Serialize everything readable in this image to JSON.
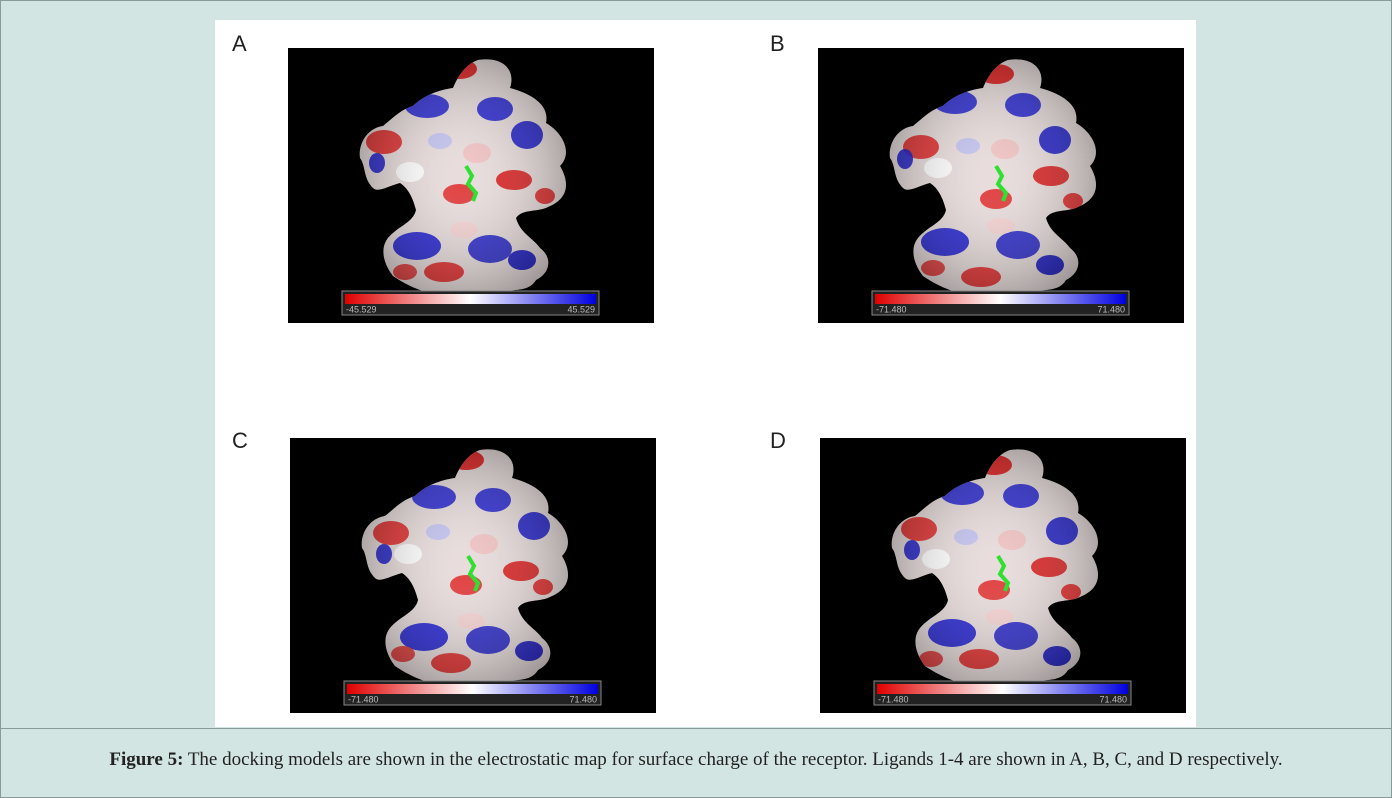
{
  "figure": {
    "panels": [
      {
        "label": "A",
        "scale_min": "-45.529",
        "scale_max": "45.529"
      },
      {
        "label": "B",
        "scale_min": "-71.480",
        "scale_max": "71.480"
      },
      {
        "label": "C",
        "scale_min": "-71.480",
        "scale_max": "71.480"
      },
      {
        "label": "D",
        "scale_min": "-71.480",
        "scale_max": "71.480"
      }
    ],
    "caption": {
      "label": "Figure 5:",
      "text": " The docking models are shown in the electrostatic map for surface charge of the receptor. Ligands 1-4 are shown in A, B, C, and D respectively."
    }
  }
}
